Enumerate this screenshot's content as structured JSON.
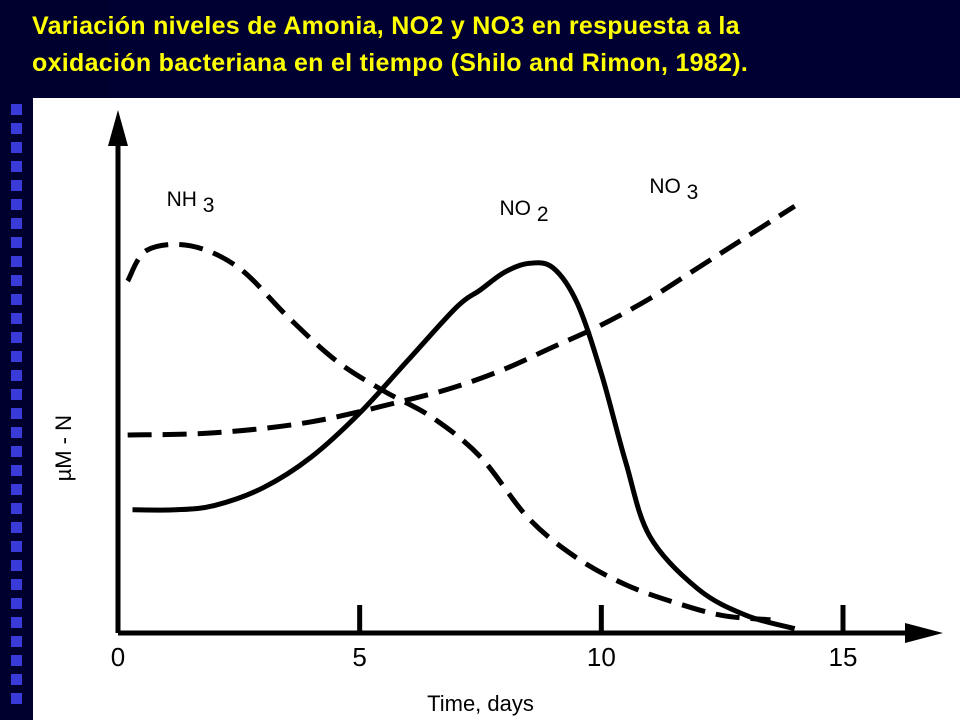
{
  "slide": {
    "title_line1": "Variación niveles de Amonia, NO2 y NO3 en respuesta a la",
    "title_line2": "oxidación bacteriana en el tiempo (Shilo and Rimon, 1982).",
    "colors": {
      "background": "#000033",
      "title": "#ffff00",
      "bullet_squares": "#3a3ad8",
      "panel": "#ffffff"
    }
  },
  "chart_data": {
    "type": "line",
    "title": "",
    "xlabel": "Time, days",
    "ylabel": "µM - N",
    "xlim": [
      0,
      15
    ],
    "ylim": [
      0,
      100
    ],
    "x_ticks": [
      0,
      5,
      10,
      15
    ],
    "y_tick_labels": false,
    "grid": false,
    "legend": "inline labels near curves",
    "series": [
      {
        "name": "NH3",
        "label_main": "NH",
        "label_sub": "3",
        "style": "dashed",
        "x": [
          0.2,
          0.6,
          1.5,
          2.5,
          3.5,
          4.5,
          5.5,
          6.5,
          7.5,
          8.5,
          9.5,
          10.5,
          11.5,
          12.5,
          13.5
        ],
        "y": [
          80,
          87,
          88,
          83,
          72,
          62,
          55,
          49,
          40,
          26,
          17,
          11,
          7,
          4,
          3
        ]
      },
      {
        "name": "NO2",
        "label_main": "NO",
        "label_sub": "2",
        "style": "solid",
        "x": [
          0.3,
          1.2,
          2,
          3,
          4,
          5,
          6,
          7,
          7.5,
          8,
          8.5,
          9,
          9.5,
          10,
          10.5,
          11,
          12,
          13,
          14
        ],
        "y": [
          28,
          28,
          29,
          33,
          40,
          50,
          62,
          74,
          78,
          82,
          84,
          83,
          75,
          59,
          39,
          22,
          10,
          4,
          1
        ]
      },
      {
        "name": "NO3",
        "label_main": "NO",
        "label_sub": "3",
        "style": "dashed",
        "x": [
          0.2,
          2,
          4,
          6,
          7,
          8,
          9,
          10,
          11,
          12,
          13,
          14
        ],
        "y": [
          45,
          45.5,
          48,
          53,
          56,
          60,
          65,
          70,
          76,
          83,
          90,
          97
        ]
      }
    ]
  }
}
